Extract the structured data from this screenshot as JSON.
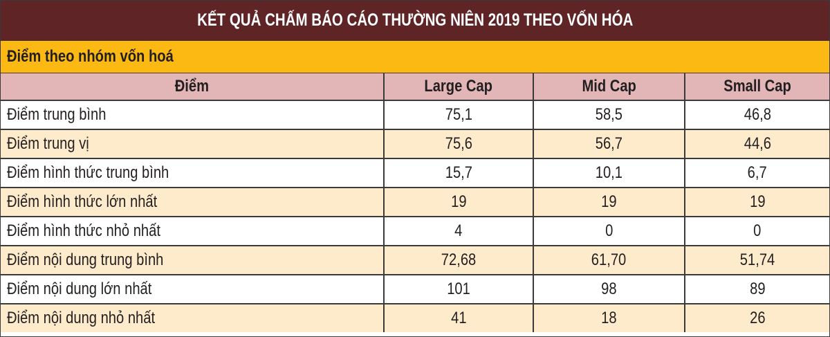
{
  "title": "KẾT QUẢ CHẤM BÁO CÁO THƯỜNG NIÊN 2019 THEO VỐN HÓA",
  "subtitle": "Điểm theo nhóm vốn hoá",
  "colors": {
    "title_bg": "#5f2426",
    "subtitle_bg": "#fdb913",
    "header_bg": "#e2b6b7",
    "row_alt_bg": "#fdebcc",
    "row_bg": "#ffffff"
  },
  "table": {
    "headers": [
      "Điểm",
      "Large Cap",
      "Mid Cap",
      "Small Cap"
    ],
    "rows": [
      {
        "label": "Điểm trung bình",
        "large": "75,1",
        "mid": "58,5",
        "small": "46,8"
      },
      {
        "label": "Điểm trung vị",
        "large": "75,6",
        "mid": "56,7",
        "small": "44,6"
      },
      {
        "label": "Điểm hình thức trung bình",
        "large": "15,7",
        "mid": "10,1",
        "small": "6,7"
      },
      {
        "label": "Điểm hình thức lớn nhất",
        "large": "19",
        "mid": "19",
        "small": "19"
      },
      {
        "label": "Điểm hình thức nhỏ nhất",
        "large": "4",
        "mid": "0",
        "small": "0"
      },
      {
        "label": "Điểm nội dung trung bình",
        "large": "72,68",
        "mid": "61,70",
        "small": "51,74"
      },
      {
        "label": "Điểm nội dung lớn nhất",
        "large": "101",
        "mid": "98",
        "small": "89"
      },
      {
        "label": "Điểm nội dung nhỏ nhất",
        "large": "41",
        "mid": "18",
        "small": "26"
      }
    ]
  }
}
